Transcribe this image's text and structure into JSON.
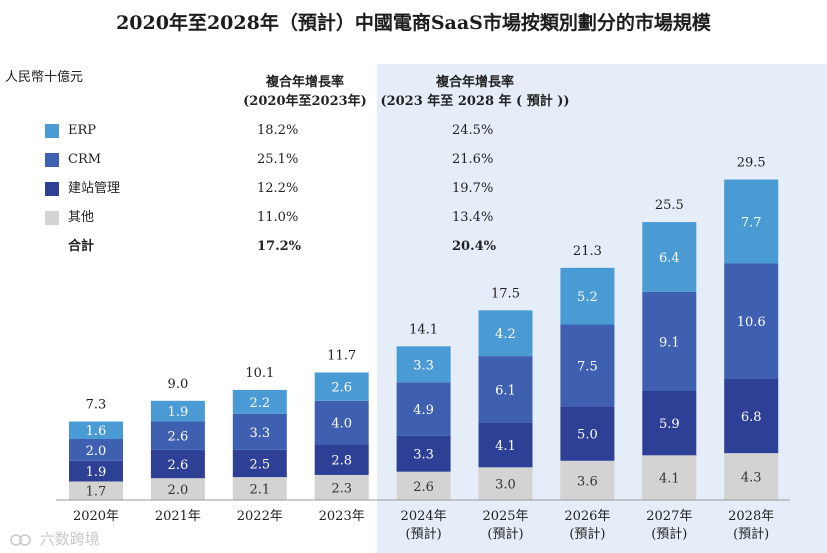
{
  "title": "2020年至2028年（預計）中國電商SaaS市場按類別劃分的市場規模",
  "unit_label": "人民幣十億元",
  "cagr_headers": {
    "historical": [
      "複合年增長率",
      "(2020年至2023年)"
    ],
    "forecast": [
      "複合年增長率",
      "(2023 年至 2028 年 ( 預計 ))"
    ]
  },
  "legend": [
    {
      "name": "ERP",
      "color": "#4a9ad4",
      "cagr_2020_2023": "18.2%",
      "cagr_2023_2028": "24.5%"
    },
    {
      "name": "CRM",
      "color": "#3f5fb0",
      "cagr_2020_2023": "25.1%",
      "cagr_2023_2028": "21.6%"
    },
    {
      "name": "建站管理",
      "color": "#2e3f96",
      "cagr_2020_2023": "12.2%",
      "cagr_2023_2028": "19.7%"
    },
    {
      "name": "其他",
      "color": "#d3d3d3",
      "cagr_2020_2023": "11.0%",
      "cagr_2023_2028": "13.4%"
    }
  ],
  "total_row": {
    "name": "合計",
    "cagr_2020_2023": "17.2%",
    "cagr_2023_2028": "20.4%"
  },
  "chart_data": {
    "type": "bar",
    "stacked": true,
    "title": "2020年至2028年（預計）中國電商SaaS市場按類別劃分的市場規模",
    "ylabel": "人民幣十億元",
    "ylim": [
      0,
      30
    ],
    "categories": [
      "2020年",
      "2021年",
      "2022年",
      "2023年",
      "2024年\n(預計)",
      "2025年\n(預計)",
      "2026年\n(預計)",
      "2027年\n(預計)",
      "2028年\n(預計)"
    ],
    "forecast_start_index": 4,
    "series": [
      {
        "name": "其他",
        "color": "#d3d3d3",
        "values": [
          1.7,
          2.0,
          2.1,
          2.3,
          2.6,
          3.0,
          3.6,
          4.1,
          4.3
        ]
      },
      {
        "name": "建站管理",
        "color": "#2e3f96",
        "values": [
          1.9,
          2.6,
          2.5,
          2.8,
          3.3,
          4.1,
          5.0,
          5.9,
          6.8
        ]
      },
      {
        "name": "CRM",
        "color": "#3f5fb0",
        "values": [
          2.0,
          2.6,
          3.3,
          4.0,
          4.9,
          6.1,
          7.5,
          9.1,
          10.6
        ]
      },
      {
        "name": "ERP",
        "color": "#4a9ad4",
        "values": [
          1.6,
          1.9,
          2.2,
          2.6,
          3.3,
          4.2,
          5.2,
          6.4,
          7.7
        ]
      }
    ],
    "totals": [
      7.3,
      9.0,
      10.1,
      11.7,
      14.1,
      17.5,
      21.3,
      25.5,
      29.5
    ]
  },
  "watermark": "六数跨境"
}
